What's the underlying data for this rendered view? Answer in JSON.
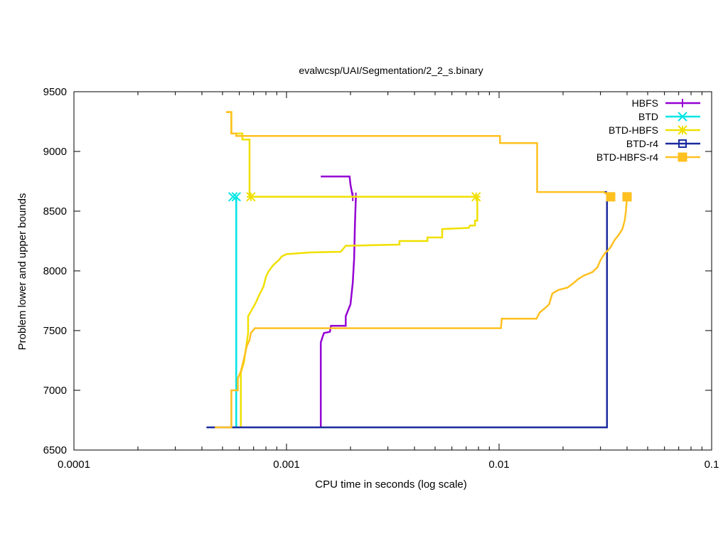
{
  "chart_data": {
    "type": "line",
    "title": "evalwcsp/UAI/Segmentation/2_2_s.binary",
    "xlabel": "CPU time in seconds (log scale)",
    "ylabel": "Problem lower and upper bounds",
    "xscale": "log",
    "xlim": [
      0.0001,
      0.1
    ],
    "ylim": [
      6500,
      9500
    ],
    "xticks": [
      {
        "value": 0.0001,
        "label": "0.0001"
      },
      {
        "value": 0.001,
        "label": "0.001"
      },
      {
        "value": 0.01,
        "label": "0.01"
      },
      {
        "value": 0.1,
        "label": "0.1"
      }
    ],
    "yticks": [
      6500,
      7000,
      7500,
      8000,
      8500,
      9000,
      9500
    ],
    "grid": false,
    "legend_position": "top-right",
    "series": [
      {
        "name": "HBFS",
        "color": "#9400d3",
        "marker": "plus",
        "upper": [
          [
            0.00145,
            8790
          ],
          [
            0.00198,
            8790
          ],
          [
            0.002,
            8720
          ],
          [
            0.00205,
            8620
          ]
        ],
        "lower": [
          [
            0.00145,
            6690
          ],
          [
            0.00145,
            7400
          ],
          [
            0.00148,
            7450
          ],
          [
            0.0015,
            7480
          ],
          [
            0.0016,
            7490
          ],
          [
            0.00162,
            7540
          ],
          [
            0.0019,
            7540
          ],
          [
            0.0019,
            7620
          ],
          [
            0.002,
            7720
          ],
          [
            0.00205,
            7900
          ],
          [
            0.00208,
            8100
          ],
          [
            0.0021,
            8400
          ],
          [
            0.00212,
            8620
          ]
        ],
        "markers": [
          [
            0.00205,
            8620
          ],
          [
            0.00212,
            8620
          ]
        ]
      },
      {
        "name": "BTD",
        "color": "#00e5e5",
        "marker": "x",
        "upper": [
          [
            0.00056,
            8620
          ]
        ],
        "lower": [
          [
            0.00058,
            6690
          ],
          [
            0.00058,
            8620
          ]
        ],
        "markers": [
          [
            0.00056,
            8620
          ],
          [
            0.00058,
            8620
          ]
        ]
      },
      {
        "name": "BTD-HBFS",
        "color": "#f0e000",
        "marker": "star",
        "upper": [
          [
            0.00052,
            9330
          ],
          [
            0.00055,
            9330
          ],
          [
            0.00055,
            9150
          ],
          [
            0.00062,
            9150
          ],
          [
            0.00062,
            9100
          ],
          [
            0.00067,
            9100
          ],
          [
            0.00067,
            8620
          ],
          [
            0.0079,
            8620
          ]
        ],
        "lower": [
          [
            0.00061,
            6690
          ],
          [
            0.00061,
            7150
          ],
          [
            0.00063,
            7230
          ],
          [
            0.00065,
            7400
          ],
          [
            0.00066,
            7480
          ],
          [
            0.00066,
            7620
          ],
          [
            0.0007,
            7700
          ],
          [
            0.00072,
            7740
          ],
          [
            0.00074,
            7790
          ],
          [
            0.00076,
            7830
          ],
          [
            0.00078,
            7870
          ],
          [
            0.0008,
            7950
          ],
          [
            0.00082,
            7990
          ],
          [
            0.00085,
            8030
          ],
          [
            0.00088,
            8060
          ],
          [
            0.00092,
            8090
          ],
          [
            0.00095,
            8120
          ],
          [
            0.001,
            8140
          ],
          [
            0.0013,
            8155
          ],
          [
            0.0018,
            8160
          ],
          [
            0.0019,
            8210
          ],
          [
            0.0034,
            8220
          ],
          [
            0.0034,
            8250
          ],
          [
            0.0046,
            8250
          ],
          [
            0.0046,
            8280
          ],
          [
            0.0054,
            8280
          ],
          [
            0.0054,
            8350
          ],
          [
            0.0072,
            8360
          ],
          [
            0.0073,
            8380
          ],
          [
            0.0077,
            8380
          ],
          [
            0.0077,
            8420
          ],
          [
            0.0079,
            8420
          ],
          [
            0.0079,
            8620
          ]
        ],
        "markers": [
          [
            0.00068,
            8620
          ],
          [
            0.0078,
            8620
          ]
        ]
      },
      {
        "name": "BTD-r4",
        "color": "#1a2a9e",
        "marker": "square-open",
        "upper": [
          [
            0.0311,
            8660
          ],
          [
            0.0322,
            8660
          ]
        ],
        "lower": [
          [
            0.00042,
            6690
          ],
          [
            0.0322,
            6690
          ],
          [
            0.0322,
            8620
          ]
        ],
        "markers": []
      },
      {
        "name": "BTD-HBFS-r4",
        "color": "#ffc020",
        "marker": "square-filled",
        "upper": [
          [
            0.00052,
            9330
          ],
          [
            0.00055,
            9330
          ],
          [
            0.00055,
            9150
          ],
          [
            0.00058,
            9150
          ],
          [
            0.00058,
            9130
          ],
          [
            0.0101,
            9130
          ],
          [
            0.0101,
            9070
          ],
          [
            0.0151,
            9070
          ],
          [
            0.0151,
            8660
          ],
          [
            0.0311,
            8660
          ],
          [
            0.0335,
            8620
          ]
        ],
        "lower": [
          [
            0.00046,
            6690
          ],
          [
            0.00055,
            6690
          ],
          [
            0.00055,
            7000
          ],
          [
            0.00059,
            7000
          ],
          [
            0.00059,
            7100
          ],
          [
            0.00061,
            7160
          ],
          [
            0.00063,
            7260
          ],
          [
            0.00065,
            7370
          ],
          [
            0.00067,
            7420
          ],
          [
            0.00068,
            7480
          ],
          [
            0.00071,
            7520
          ],
          [
            0.0102,
            7520
          ],
          [
            0.0103,
            7600
          ],
          [
            0.015,
            7600
          ],
          [
            0.0155,
            7650
          ],
          [
            0.0165,
            7690
          ],
          [
            0.0172,
            7720
          ],
          [
            0.0178,
            7810
          ],
          [
            0.019,
            7840
          ],
          [
            0.021,
            7860
          ],
          [
            0.0225,
            7900
          ],
          [
            0.0235,
            7930
          ],
          [
            0.025,
            7960
          ],
          [
            0.0275,
            7990
          ],
          [
            0.029,
            8030
          ],
          [
            0.03,
            8090
          ],
          [
            0.0315,
            8150
          ],
          [
            0.0325,
            8170
          ],
          [
            0.0335,
            8200
          ],
          [
            0.035,
            8260
          ],
          [
            0.0365,
            8300
          ],
          [
            0.038,
            8350
          ],
          [
            0.039,
            8420
          ],
          [
            0.0395,
            8500
          ],
          [
            0.04,
            8620
          ]
        ],
        "markers": [
          [
            0.0335,
            8620
          ],
          [
            0.04,
            8620
          ]
        ]
      }
    ]
  }
}
